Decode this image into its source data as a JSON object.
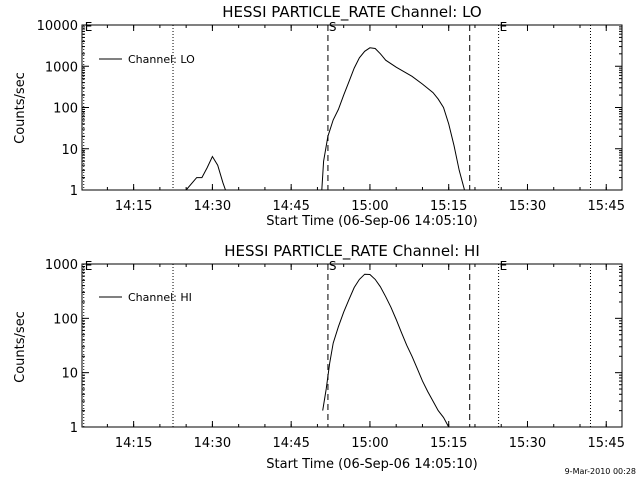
{
  "timestamp": "9-Mar-2010 00:28",
  "chart_data": [
    {
      "type": "line",
      "title": "HESSI PARTICLE_RATE Channel: LO",
      "xlabel": "Start Time (06-Sep-06 14:05:10)",
      "ylabel": "Counts/sec",
      "yscale": "log",
      "ylim": [
        1,
        10000
      ],
      "yticks": [
        {
          "value": 1,
          "label": "1"
        },
        {
          "value": 10,
          "label": "10"
        },
        {
          "value": 100,
          "label": "100"
        },
        {
          "value": 1000,
          "label": "1000"
        },
        {
          "value": 10000,
          "label": "10000"
        }
      ],
      "xlim": [
        "14:05:10",
        "15:48:00"
      ],
      "xticks": [
        {
          "value": "14:15",
          "label": "14:15"
        },
        {
          "value": "14:30",
          "label": "14:30"
        },
        {
          "value": "14:45",
          "label": "14:45"
        },
        {
          "value": "15:00",
          "label": "15:00"
        },
        {
          "value": "15:15",
          "label": "15:15"
        },
        {
          "value": "15:30",
          "label": "15:30"
        },
        {
          "value": "15:45",
          "label": "15:45"
        }
      ],
      "legend": {
        "position": "top-left",
        "entries": [
          "Channel: LO"
        ]
      },
      "markers": [
        {
          "x": "14:05:30",
          "label": "E",
          "style": "dotted"
        },
        {
          "x": "14:22:30",
          "label": "",
          "style": "dotted"
        },
        {
          "x": "14:52:00",
          "label": "S",
          "style": "dashed"
        },
        {
          "x": "15:19:00",
          "label": "",
          "style": "dashed"
        },
        {
          "x": "15:24:30",
          "label": "E",
          "style": "dotted"
        },
        {
          "x": "15:42:00",
          "label": "",
          "style": "dotted"
        }
      ],
      "series": [
        {
          "name": "Channel: LO",
          "x": [
            "14:25:00",
            "14:27:00",
            "14:28:00",
            "14:29:00",
            "14:30:00",
            "14:31:00",
            "14:32:00",
            "14:32:30",
            "14:50:50",
            "14:51:10",
            "14:52:00",
            "14:53:00",
            "14:54:00",
            "14:55:00",
            "14:56:00",
            "14:57:00",
            "14:58:00",
            "14:59:00",
            "15:00:00",
            "15:01:00",
            "15:02:00",
            "15:03:00",
            "15:05:00",
            "15:08:00",
            "15:10:00",
            "15:12:00",
            "15:13:00",
            "15:14:00",
            "15:15:00",
            "15:16:00",
            "15:17:00",
            "15:18:00"
          ],
          "y": [
            1,
            2,
            2,
            3.5,
            6.5,
            4,
            1.5,
            1,
            1,
            5,
            20,
            50,
            90,
            200,
            420,
            900,
            1600,
            2300,
            2800,
            2700,
            2000,
            1400,
            950,
            570,
            370,
            230,
            160,
            100,
            40,
            12,
            3,
            1
          ]
        }
      ]
    },
    {
      "type": "line",
      "title": "HESSI PARTICLE_RATE Channel: HI",
      "xlabel": "Start Time (06-Sep-06 14:05:10)",
      "ylabel": "Counts/sec",
      "yscale": "log",
      "ylim": [
        1,
        1000
      ],
      "yticks": [
        {
          "value": 1,
          "label": "1"
        },
        {
          "value": 10,
          "label": "10"
        },
        {
          "value": 100,
          "label": "100"
        },
        {
          "value": 1000,
          "label": "1000"
        }
      ],
      "xlim": [
        "14:05:10",
        "15:48:00"
      ],
      "xticks": [
        {
          "value": "14:15",
          "label": "14:15"
        },
        {
          "value": "14:30",
          "label": "14:30"
        },
        {
          "value": "14:45",
          "label": "14:45"
        },
        {
          "value": "15:00",
          "label": "15:00"
        },
        {
          "value": "15:15",
          "label": "15:15"
        },
        {
          "value": "15:30",
          "label": "15:30"
        },
        {
          "value": "15:45",
          "label": "15:45"
        }
      ],
      "legend": {
        "position": "top-left",
        "entries": [
          "Channel: HI"
        ]
      },
      "markers": [
        {
          "x": "14:05:30",
          "label": "E",
          "style": "dotted"
        },
        {
          "x": "14:22:30",
          "label": "",
          "style": "dotted"
        },
        {
          "x": "14:52:00",
          "label": "S",
          "style": "dashed"
        },
        {
          "x": "15:19:00",
          "label": "",
          "style": "dashed"
        },
        {
          "x": "15:24:30",
          "label": "E",
          "style": "dotted"
        },
        {
          "x": "15:42:00",
          "label": "",
          "style": "dotted"
        }
      ],
      "series": [
        {
          "name": "Channel: HI",
          "x": [
            "14:51:00",
            "14:51:40",
            "14:52:20",
            "14:53:00",
            "14:54:00",
            "14:55:00",
            "14:56:00",
            "14:57:00",
            "14:58:00",
            "14:59:00",
            "15:00:00",
            "15:01:00",
            "15:02:00",
            "15:03:00",
            "15:04:00",
            "15:05:00",
            "15:06:00",
            "15:07:00",
            "15:08:00",
            "15:09:00",
            "15:10:00",
            "15:11:00",
            "15:12:00",
            "15:13:00",
            "15:14:00",
            "15:15:00"
          ],
          "y": [
            2,
            5,
            15,
            35,
            70,
            130,
            220,
            370,
            520,
            650,
            640,
            520,
            380,
            250,
            160,
            95,
            55,
            32,
            20,
            12,
            7,
            4.5,
            3,
            2,
            1.5,
            1
          ]
        }
      ]
    }
  ]
}
